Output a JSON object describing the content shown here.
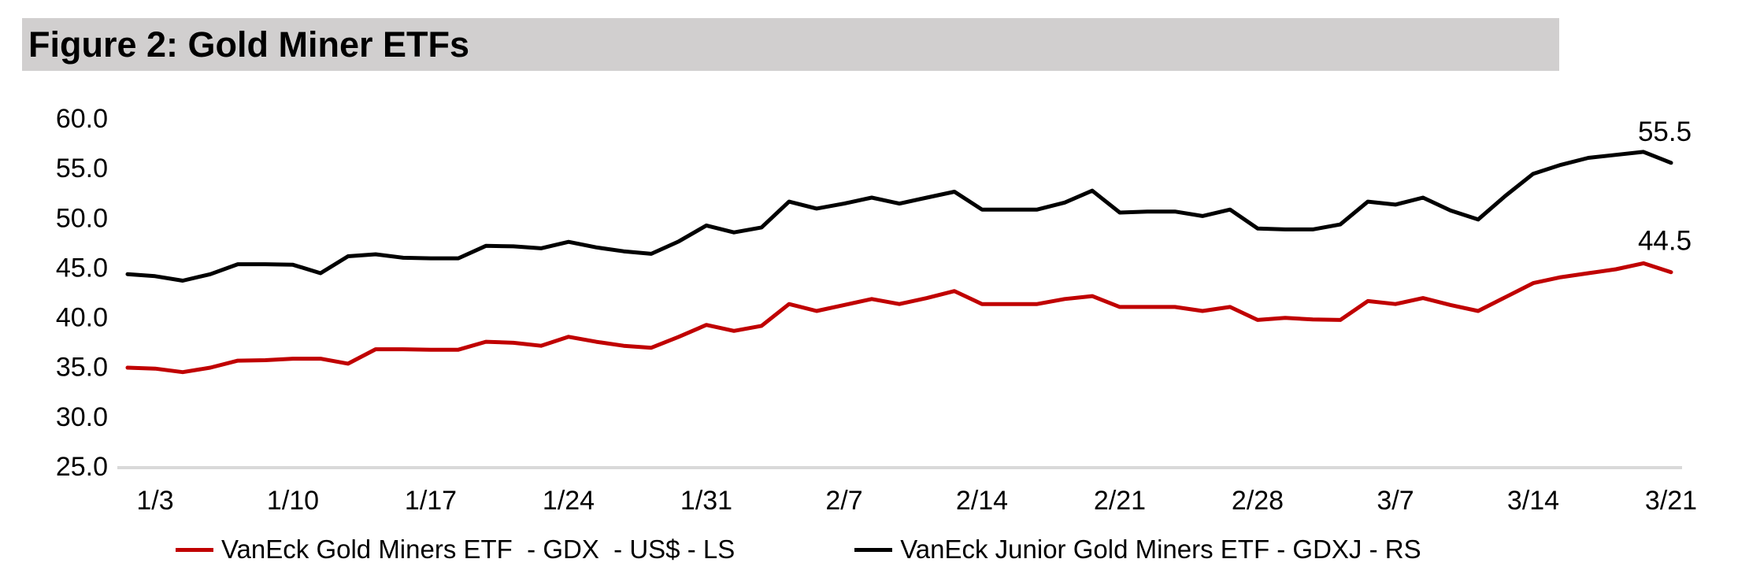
{
  "header": {
    "title": "Figure 2: Gold Miner ETFs"
  },
  "colors": {
    "background": "#FFFFFF",
    "title_bar_bg": "#D1CFCF",
    "axis_line": "#D9D9D9",
    "text": "#000000",
    "gdx_red": "#C00000",
    "gdxj_black": "#000000"
  },
  "legend": {
    "items": [
      {
        "label": "VanEck Gold Miners ETF  - GDX  - US$ - LS",
        "color": "#C00000"
      },
      {
        "label": "VanEck Junior Gold Miners ETF - GDXJ - RS",
        "color": "#000000"
      }
    ]
  },
  "chart_data": {
    "type": "line",
    "title": "Figure 2: Gold Miner ETFs",
    "xlabel": "",
    "ylabel": "",
    "ylim": [
      25.0,
      60.0
    ],
    "grid": false,
    "legend_position": "bottom",
    "y_tick_labels": [
      "60.0",
      "55.0",
      "50.0",
      "45.0",
      "40.0",
      "35.0",
      "30.0",
      "25.0"
    ],
    "x_tick_labels": [
      "1/3",
      "1/10",
      "1/17",
      "1/24",
      "1/31",
      "2/7",
      "2/14",
      "2/21",
      "2/28",
      "3/7",
      "3/14",
      "3/21"
    ],
    "x": [
      "1/2",
      "1/3",
      "1/6",
      "1/7",
      "1/8",
      "1/9",
      "1/10",
      "1/13",
      "1/14",
      "1/15",
      "1/16",
      "1/17",
      "1/20",
      "1/21",
      "1/22",
      "1/23",
      "1/24",
      "1/27",
      "1/28",
      "1/29",
      "1/30",
      "1/31",
      "2/3",
      "2/4",
      "2/5",
      "2/6",
      "2/7",
      "2/10",
      "2/11",
      "2/12",
      "2/13",
      "2/14",
      "2/17",
      "2/18",
      "2/19",
      "2/20",
      "2/21",
      "2/24",
      "2/25",
      "2/26",
      "2/27",
      "2/28",
      "3/3",
      "3/4",
      "3/5",
      "3/6",
      "3/7",
      "3/10",
      "3/11",
      "3/12",
      "3/13",
      "3/14",
      "3/17",
      "3/18",
      "3/19",
      "3/20",
      "3/21"
    ],
    "series": [
      {
        "name": "VanEck Gold Miners ETF - GDX - US$",
        "scale": "LS",
        "color": "#C00000",
        "end_label": "44.5",
        "values": [
          34.9,
          34.8,
          34.45,
          34.9,
          35.6,
          35.65,
          35.8,
          35.8,
          35.3,
          36.75,
          36.75,
          36.7,
          36.7,
          37.5,
          37.4,
          37.1,
          38.0,
          37.5,
          37.1,
          36.9,
          38.0,
          39.2,
          38.6,
          39.1,
          41.3,
          40.6,
          41.2,
          41.8,
          41.3,
          41.9,
          42.6,
          41.3,
          41.3,
          41.3,
          41.8,
          42.1,
          41.0,
          41.0,
          41.0,
          40.6,
          41.0,
          39.7,
          39.9,
          39.75,
          39.7,
          41.6,
          41.3,
          41.9,
          41.2,
          40.6,
          42.0,
          43.4,
          44.0,
          44.4,
          44.8,
          45.4,
          44.5
        ]
      },
      {
        "name": "VanEck Junior Gold Miners ETF - GDXJ",
        "scale": "RS",
        "color": "#000000",
        "end_label": "55.5",
        "values": [
          44.3,
          44.1,
          43.65,
          44.3,
          45.3,
          45.3,
          45.25,
          44.4,
          46.1,
          46.3,
          45.95,
          45.9,
          45.9,
          47.15,
          47.1,
          46.9,
          47.55,
          47.0,
          46.6,
          46.35,
          47.6,
          49.2,
          48.5,
          49.0,
          51.6,
          50.9,
          51.4,
          52.0,
          51.4,
          52.0,
          52.6,
          50.8,
          50.8,
          50.8,
          51.5,
          52.7,
          50.5,
          50.6,
          50.6,
          50.15,
          50.8,
          48.9,
          48.8,
          48.8,
          49.3,
          51.6,
          51.3,
          52.0,
          50.7,
          49.8,
          52.2,
          54.4,
          55.3,
          56.0,
          56.3,
          56.6,
          55.5
        ]
      }
    ]
  }
}
